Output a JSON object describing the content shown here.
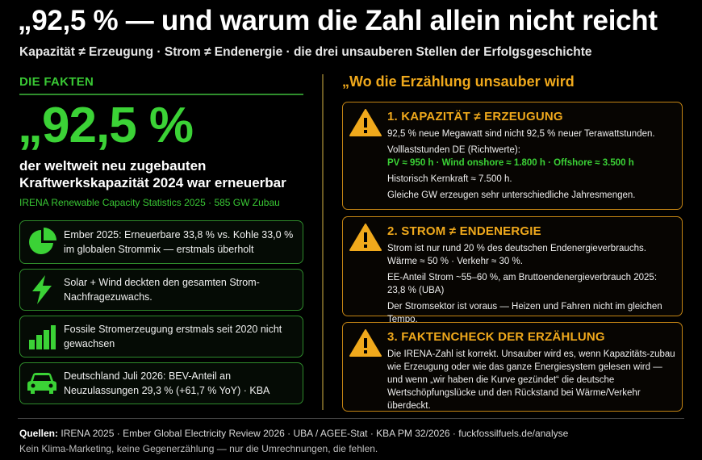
{
  "header": {
    "title": "„92,5 % — und warum die Zahl allein nicht reicht",
    "subtitle": "Kapazität ≠ Erzeugung · Strom ≠ Endenergie · die drei unsauberen Stellen der Erfolgsgeschichte"
  },
  "colors": {
    "accent_green": "#3bd236",
    "accent_orange": "#f0a91c",
    "background": "#000000"
  },
  "facts": {
    "heading": "DIE FAKTEN",
    "big_number": "„92,5 %",
    "big_desc": "der weltweit neu zugebauten Kraftwerkskapazität 2024 war erneuerbar",
    "big_source": "IRENA Renewable Capacity Statistics 2025 · 585 GW Zubau",
    "items": [
      {
        "icon": "pie-chart-icon",
        "text": "Ember 2025: Erneuerbare 33,8 % vs. Kohle 33,0 % im globalen Strommix — erstmals überholt"
      },
      {
        "icon": "lightning-icon",
        "text": "Solar + Wind deckten den gesamten Strom-Nachfragezuwachs."
      },
      {
        "icon": "bar-chart-icon",
        "text": "Fossile Stromerzeugung erstmals seit 2020 nicht gewachsen"
      },
      {
        "icon": "car-icon",
        "text": "Deutschland Juli 2026: BEV-Anteil an Neuzulassungen 29,3 % (+61,7 % YoY) · KBA"
      }
    ]
  },
  "narrative": {
    "heading": "„Wo die Erzählung unsauber wird",
    "cards": [
      {
        "icon": "warning-icon",
        "title": "1. KAPAZITÄT ≠ ERZEUGUNG",
        "lines": [
          "92,5 % neue Megawatt sind nicht 92,5 % neuer Terawattstunden.",
          "Volllaststunden DE (Richtwerte):",
          "PV ≈ 950 h · Wind onshore ≈ 1.800 h · Offshore ≈ 3.500 h",
          "Historisch Kernkraft ≈ 7.500 h.",
          "Gleiche GW erzeugen sehr unterschiedliche Jahresmengen."
        ]
      },
      {
        "icon": "warning-icon",
        "title": "2. STROM ≠ ENDENERGIE",
        "lines": [
          "Strom ist nur rund 20 % des deutschen Endenergieverbrauchs.",
          "Wärme ≈ 50 % · Verkehr ≈ 30 %.",
          "EE-Anteil Strom ~55–60 %, am Bruttoendenergieverbrauch 2025: 23,8 % (UBA)",
          "Der Stromsektor ist voraus — Heizen und Fahren nicht im gleichen Tempo."
        ]
      },
      {
        "icon": "warning-icon",
        "title": "3. FAKTENCHECK DER ERZÄHLUNG",
        "lines": [
          "Die IRENA-Zahl ist korrekt. Unsauber wird es, wenn Kapazitäts-zubau wie Erzeugung oder wie das ganze Energiesystem gelesen wird — und wenn „wir haben die Kurve gezündet“ die deutsche Wertschöpfungslücke und den Rückstand bei Wärme/Verkehr überdeckt."
        ]
      }
    ]
  },
  "footer": {
    "sources_label": "Quellen:",
    "sources_text": "IRENA 2025 · Ember Global Electricity Review 2026 · UBA / AGEE-Stat · KBA PM 32/2026 · fuckfossilfuels.de/analyse",
    "note": "Kein Klima-Marketing, keine Gegenerzählung — nur die Umrechnungen, die fehlen."
  }
}
